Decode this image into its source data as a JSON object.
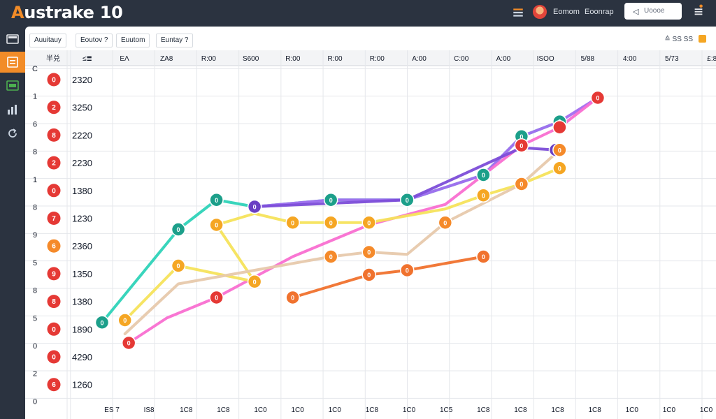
{
  "app": {
    "title_accent": "A",
    "title_rest": "ustrake 10"
  },
  "header": {
    "link_1": "Eomom",
    "link_2": "Eoonrap",
    "search_placeholder": "Uoooe",
    "icons": [
      "list-icon",
      "user-avatar",
      "search-icon",
      "menu-icon"
    ]
  },
  "sidebar": {
    "items": [
      {
        "icon": "monitor-icon",
        "active": false
      },
      {
        "icon": "document-icon",
        "active": true
      },
      {
        "icon": "spreadsheet-icon",
        "active": false
      },
      {
        "icon": "chart-icon",
        "active": false
      },
      {
        "icon": "refresh-icon",
        "active": false
      }
    ]
  },
  "tabs": [
    "Auuitauy",
    "Eoutov ?",
    "Euutom",
    "Euntay ?"
  ],
  "toolbar": {
    "label": "≙ SS SS",
    "icons": [
      "sort-icon",
      "settings-square-icon"
    ]
  },
  "table": {
    "headers": [
      "半兑",
      "≤≣"
    ],
    "rows": [
      {
        "badge": "0",
        "value": "2320",
        "color": "#e53935"
      },
      {
        "badge": "2",
        "value": "3250",
        "color": "#e53935"
      },
      {
        "badge": "8",
        "value": "2220",
        "color": "#e53935"
      },
      {
        "badge": "2",
        "value": "2230",
        "color": "#e53935"
      },
      {
        "badge": "0",
        "value": "1380",
        "color": "#e53935"
      },
      {
        "badge": "7",
        "value": "1230",
        "color": "#e53935"
      },
      {
        "badge": "6",
        "value": "2360",
        "color": "#f58a2a"
      },
      {
        "badge": "9",
        "value": "1350",
        "color": "#e53935"
      },
      {
        "badge": "8",
        "value": "1380",
        "color": "#e53935"
      },
      {
        "badge": "0",
        "value": "1890",
        "color": "#e53935"
      },
      {
        "badge": "0",
        "value": "4290",
        "color": "#e53935"
      },
      {
        "badge": "6",
        "value": "1260",
        "color": "#e53935"
      }
    ]
  },
  "chart_data": {
    "type": "line",
    "grid": true,
    "y_tick_labels": [
      "C",
      "1",
      "6",
      "8",
      "1",
      "8",
      "9",
      "5",
      "8",
      "5",
      "0",
      "2",
      "0"
    ],
    "x_header_labels": [
      "EΛ",
      "ZA8",
      "R:00",
      "S600",
      "R:00",
      "R:00",
      "R:00",
      "A:00",
      "C:00",
      "A:00",
      "ISOO",
      "5/88",
      "4:00",
      "5/73",
      "£:88"
    ],
    "x_bottom_labels": [
      "ES 7",
      "IS8",
      "1C8",
      "1C8",
      "1C0",
      "1C0",
      "1C0",
      "1C8",
      "1C0",
      "1C5",
      "1C8",
      "1C8",
      "1C8",
      "1C8",
      "1C0",
      "1C0",
      "1C0"
    ],
    "x_range": [
      1,
      16
    ],
    "y_range": [
      0,
      12
    ],
    "series": [
      {
        "color": "#2ed3b8",
        "points": [
          [
            1,
            2.1
          ],
          [
            3,
            6.2
          ],
          [
            4,
            7.5
          ],
          [
            5,
            7.2
          ],
          [
            7,
            7.5
          ],
          [
            9,
            7.5
          ],
          [
            11,
            8.6
          ],
          [
            12,
            10.3
          ],
          [
            13,
            10.95
          ]
        ],
        "labels": [
          "0",
          "0",
          "0",
          "0",
          "0",
          "0",
          "0",
          "0",
          "0"
        ],
        "marker": "#1c9f8a"
      },
      {
        "color": "#a36df0",
        "points": [
          [
            5,
            7.2
          ],
          [
            7,
            7.5
          ],
          [
            9,
            7.5
          ],
          [
            11,
            8.6
          ],
          [
            12,
            10.3
          ],
          [
            13,
            10.95
          ],
          [
            14,
            12
          ]
        ],
        "labels": [
          "",
          "",
          "",
          "",
          "",
          "0",
          ""
        ],
        "marker": "#7b3fd1",
        "hidden_markers": [
          0,
          1,
          2,
          3,
          4,
          5,
          6
        ]
      },
      {
        "color": "#f96fd1",
        "points": [
          [
            1.7,
            1.2
          ],
          [
            2.7,
            2.3
          ],
          [
            4,
            3.2
          ],
          [
            6,
            5.0
          ],
          [
            8,
            6.4
          ],
          [
            10,
            7.3
          ],
          [
            11,
            8.6
          ],
          [
            12,
            9.9
          ],
          [
            13,
            10.7
          ],
          [
            14,
            12
          ]
        ],
        "labels": [
          "0",
          "",
          "0",
          "",
          "",
          "",
          "",
          "0",
          "",
          "0"
        ],
        "marker": "#e53935",
        "hidden_markers": [
          1,
          3,
          4,
          5,
          6
        ]
      },
      {
        "color": "#7c4dd8",
        "points": [
          [
            5,
            7.2
          ],
          [
            9,
            7.5
          ],
          [
            12,
            9.8
          ],
          [
            12.9,
            9.7
          ]
        ],
        "labels": [
          "0",
          "0",
          "0",
          "0"
        ],
        "marker": "#6a3fc4",
        "hidden_markers": [
          1,
          2
        ]
      },
      {
        "color": "#f5e35b",
        "points": [
          [
            1.6,
            2.2
          ],
          [
            3,
            4.6
          ],
          [
            5,
            3.9
          ],
          [
            4,
            6.4
          ],
          [
            5,
            6.9
          ],
          [
            6,
            6.5
          ],
          [
            7,
            6.5
          ],
          [
            8,
            6.5
          ],
          [
            10,
            7.1
          ],
          [
            11,
            7.7
          ],
          [
            12,
            8.2
          ],
          [
            13,
            8.9
          ]
        ],
        "labels": [
          "0",
          "0",
          "0",
          "0",
          "",
          "0",
          "0",
          "0",
          "",
          "0",
          "0",
          "0"
        ],
        "marker": "#f5a623",
        "hidden_markers": [
          4,
          8
        ]
      },
      {
        "color": "#e7c9ac",
        "points": [
          [
            1.6,
            1.6
          ],
          [
            3,
            3.8
          ],
          [
            7,
            5.0
          ],
          [
            8,
            5.2
          ],
          [
            9,
            5.1
          ],
          [
            10,
            6.5
          ],
          [
            12,
            8.2
          ],
          [
            13,
            9.7
          ]
        ],
        "labels": [
          "",
          "",
          "0",
          "0",
          "",
          "0",
          "0",
          "0"
        ],
        "marker": "#f58a2a",
        "hidden_markers": [
          0,
          1,
          4
        ]
      },
      {
        "color": "#f0722e",
        "points": [
          [
            6,
            3.2
          ],
          [
            8,
            4.2
          ],
          [
            9,
            4.4
          ],
          [
            11,
            5.0
          ]
        ],
        "labels": [
          "0",
          "0",
          "0",
          "0"
        ],
        "marker": "#f0722e"
      }
    ]
  }
}
